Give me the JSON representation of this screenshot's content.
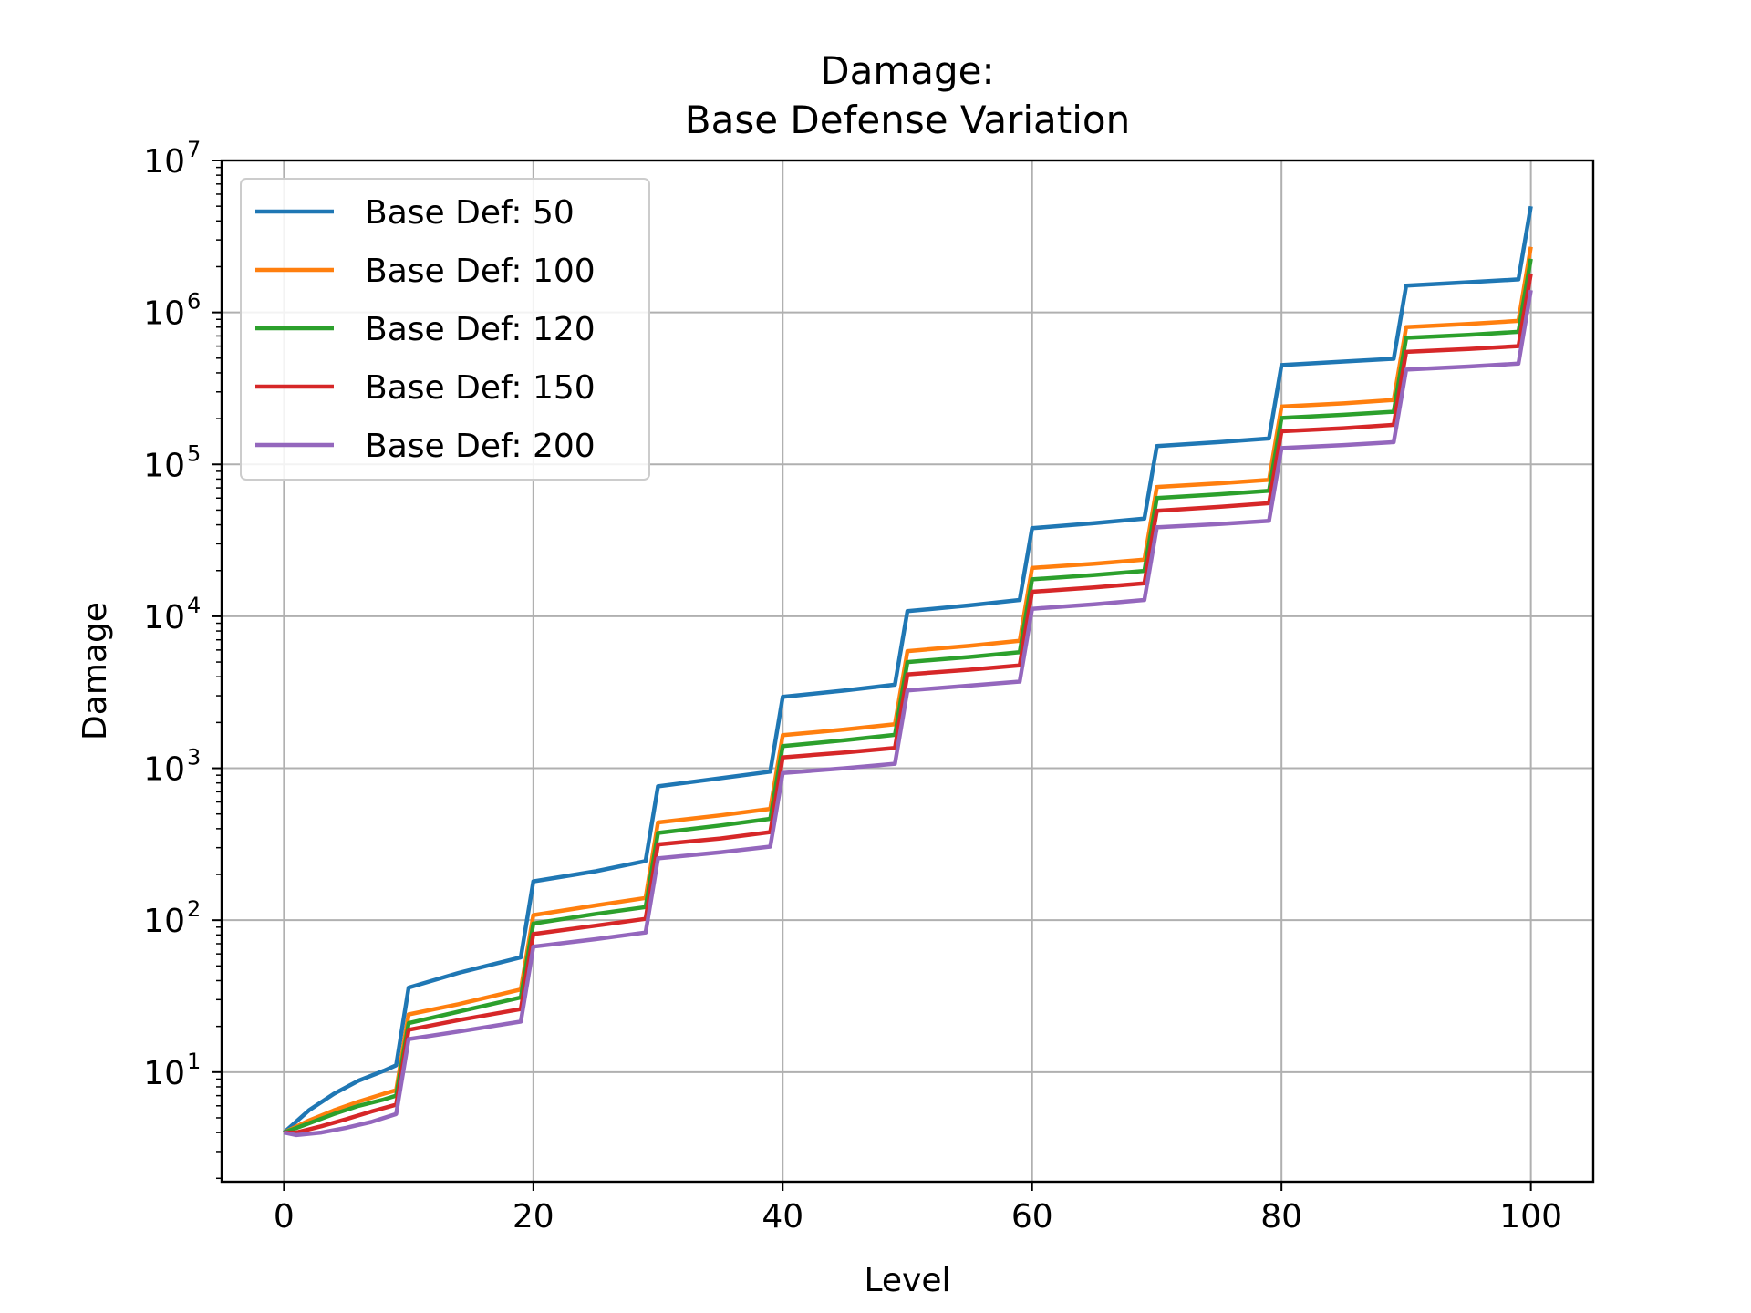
{
  "chart_data": {
    "type": "line",
    "title": "Damage:",
    "subtitle": "Base Defense Variation",
    "xlabel": "Level",
    "ylabel": "Damage",
    "xlim": [
      -5,
      105
    ],
    "ylim": [
      1.9,
      10000000
    ],
    "yscale": "log",
    "grid": true,
    "legend_position": "upper-left",
    "x_ticks": [
      0,
      20,
      40,
      60,
      80,
      100
    ],
    "x_tick_labels": [
      "0",
      "20",
      "40",
      "60",
      "80",
      "100"
    ],
    "y_ticks": [
      10,
      100,
      1000,
      10000,
      100000,
      1000000,
      10000000
    ],
    "y_tick_labels": [
      {
        "base": "10",
        "exp": "1"
      },
      {
        "base": "10",
        "exp": "2"
      },
      {
        "base": "10",
        "exp": "3"
      },
      {
        "base": "10",
        "exp": "4"
      },
      {
        "base": "10",
        "exp": "5"
      },
      {
        "base": "10",
        "exp": "6"
      },
      {
        "base": "10",
        "exp": "7"
      }
    ],
    "series": [
      {
        "name": "Base Def: 50",
        "color": "#1f77b4",
        "points": [
          [
            0,
            4.0
          ],
          [
            2,
            5.6
          ],
          [
            4,
            7.2
          ],
          [
            6,
            8.8
          ],
          [
            8,
            10.2
          ],
          [
            9,
            11.1
          ],
          [
            10,
            36
          ],
          [
            14,
            45
          ],
          [
            19,
            57
          ],
          [
            20,
            180
          ],
          [
            25,
            210
          ],
          [
            29,
            245
          ],
          [
            30,
            760
          ],
          [
            35,
            860
          ],
          [
            39,
            950
          ],
          [
            40,
            2950
          ],
          [
            45,
            3250
          ],
          [
            49,
            3550
          ],
          [
            50,
            10800
          ],
          [
            55,
            11800
          ],
          [
            59,
            12800
          ],
          [
            60,
            38000
          ],
          [
            65,
            41000
          ],
          [
            69,
            44000
          ],
          [
            70,
            132000
          ],
          [
            75,
            140000
          ],
          [
            79,
            148000
          ],
          [
            80,
            450000
          ],
          [
            85,
            475000
          ],
          [
            89,
            495000
          ],
          [
            90,
            1500000
          ],
          [
            95,
            1580000
          ],
          [
            99,
            1650000
          ],
          [
            100,
            5000000
          ]
        ]
      },
      {
        "name": "Base Def: 100",
        "color": "#ff7f0e",
        "points": [
          [
            0,
            4.0
          ],
          [
            2,
            4.8
          ],
          [
            4,
            5.6
          ],
          [
            6,
            6.4
          ],
          [
            8,
            7.2
          ],
          [
            9,
            7.6
          ],
          [
            10,
            24
          ],
          [
            14,
            28
          ],
          [
            19,
            35
          ],
          [
            20,
            108
          ],
          [
            25,
            125
          ],
          [
            29,
            140
          ],
          [
            30,
            440
          ],
          [
            35,
            490
          ],
          [
            39,
            540
          ],
          [
            40,
            1650
          ],
          [
            45,
            1800
          ],
          [
            49,
            1950
          ],
          [
            50,
            5900
          ],
          [
            55,
            6400
          ],
          [
            59,
            6900
          ],
          [
            60,
            20800
          ],
          [
            65,
            22200
          ],
          [
            69,
            23600
          ],
          [
            70,
            71000
          ],
          [
            75,
            75000
          ],
          [
            79,
            79000
          ],
          [
            80,
            240000
          ],
          [
            85,
            252000
          ],
          [
            89,
            265000
          ],
          [
            90,
            800000
          ],
          [
            95,
            840000
          ],
          [
            99,
            880000
          ],
          [
            100,
            2700000
          ]
        ]
      },
      {
        "name": "Base Def: 120",
        "color": "#2ca02c",
        "points": [
          [
            0,
            4.0
          ],
          [
            2,
            4.6
          ],
          [
            4,
            5.3
          ],
          [
            6,
            6.0
          ],
          [
            8,
            6.6
          ],
          [
            9,
            7.0
          ],
          [
            10,
            21
          ],
          [
            14,
            25
          ],
          [
            19,
            31
          ],
          [
            20,
            95
          ],
          [
            25,
            110
          ],
          [
            29,
            122
          ],
          [
            30,
            375
          ],
          [
            35,
            420
          ],
          [
            39,
            465
          ],
          [
            40,
            1400
          ],
          [
            45,
            1530
          ],
          [
            49,
            1660
          ],
          [
            50,
            5000
          ],
          [
            55,
            5400
          ],
          [
            59,
            5800
          ],
          [
            60,
            17500
          ],
          [
            65,
            18700
          ],
          [
            69,
            19900
          ],
          [
            70,
            60000
          ],
          [
            75,
            63500
          ],
          [
            79,
            67000
          ],
          [
            80,
            202000
          ],
          [
            85,
            212000
          ],
          [
            89,
            222000
          ],
          [
            90,
            680000
          ],
          [
            95,
            712000
          ],
          [
            99,
            745000
          ],
          [
            100,
            2250000
          ]
        ]
      },
      {
        "name": "Base Def: 150",
        "color": "#d62728",
        "points": [
          [
            0,
            4.0
          ],
          [
            1,
            4.0
          ],
          [
            3,
            4.4
          ],
          [
            5,
            4.9
          ],
          [
            7,
            5.5
          ],
          [
            9,
            6.1
          ],
          [
            10,
            19
          ],
          [
            14,
            22
          ],
          [
            19,
            26
          ],
          [
            20,
            81
          ],
          [
            25,
            92
          ],
          [
            29,
            102
          ],
          [
            30,
            315
          ],
          [
            35,
            345
          ],
          [
            39,
            380
          ],
          [
            40,
            1180
          ],
          [
            45,
            1270
          ],
          [
            49,
            1360
          ],
          [
            50,
            4150
          ],
          [
            55,
            4450
          ],
          [
            59,
            4750
          ],
          [
            60,
            14500
          ],
          [
            65,
            15500
          ],
          [
            69,
            16500
          ],
          [
            70,
            49500
          ],
          [
            75,
            52500
          ],
          [
            79,
            55500
          ],
          [
            80,
            165000
          ],
          [
            85,
            173000
          ],
          [
            89,
            182000
          ],
          [
            90,
            550000
          ],
          [
            95,
            575000
          ],
          [
            99,
            600000
          ],
          [
            100,
            1800000
          ]
        ]
      },
      {
        "name": "Base Def: 200",
        "color": "#9467bd",
        "points": [
          [
            0,
            4.0
          ],
          [
            1,
            3.85
          ],
          [
            3,
            4.0
          ],
          [
            5,
            4.3
          ],
          [
            7,
            4.7
          ],
          [
            9,
            5.3
          ],
          [
            10,
            16.5
          ],
          [
            14,
            18.5
          ],
          [
            19,
            21.5
          ],
          [
            20,
            67
          ],
          [
            25,
            75
          ],
          [
            29,
            83
          ],
          [
            30,
            255
          ],
          [
            35,
            280
          ],
          [
            39,
            305
          ],
          [
            40,
            930
          ],
          [
            45,
            1000
          ],
          [
            49,
            1070
          ],
          [
            50,
            3250
          ],
          [
            55,
            3500
          ],
          [
            59,
            3720
          ],
          [
            60,
            11200
          ],
          [
            65,
            12000
          ],
          [
            69,
            12800
          ],
          [
            70,
            38500
          ],
          [
            75,
            40500
          ],
          [
            79,
            42500
          ],
          [
            80,
            128000
          ],
          [
            85,
            134000
          ],
          [
            89,
            140000
          ],
          [
            90,
            420000
          ],
          [
            95,
            440000
          ],
          [
            99,
            460000
          ],
          [
            100,
            1400000
          ]
        ]
      }
    ]
  }
}
